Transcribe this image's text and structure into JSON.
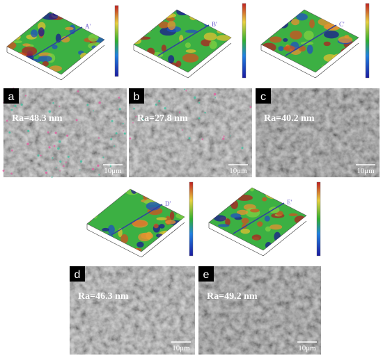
{
  "surface_plots": [
    {
      "label": "A'"
    },
    {
      "label": "B'"
    },
    {
      "label": "C'"
    },
    {
      "label": "D'"
    },
    {
      "label": "E'"
    }
  ],
  "panels": [
    {
      "label": "a",
      "ra": "Ra=48.3 nm",
      "scale": "10μm"
    },
    {
      "label": "b",
      "ra": "Ra=27.8 nm",
      "scale": "10μm"
    },
    {
      "label": "c",
      "ra": "Ra=40.2 nm",
      "scale": "10μm"
    },
    {
      "label": "d",
      "ra": "Ra=46.3 nm",
      "scale": "10μm"
    },
    {
      "label": "e",
      "ra": "Ra=49.2 nm",
      "scale": "10μm"
    }
  ]
}
